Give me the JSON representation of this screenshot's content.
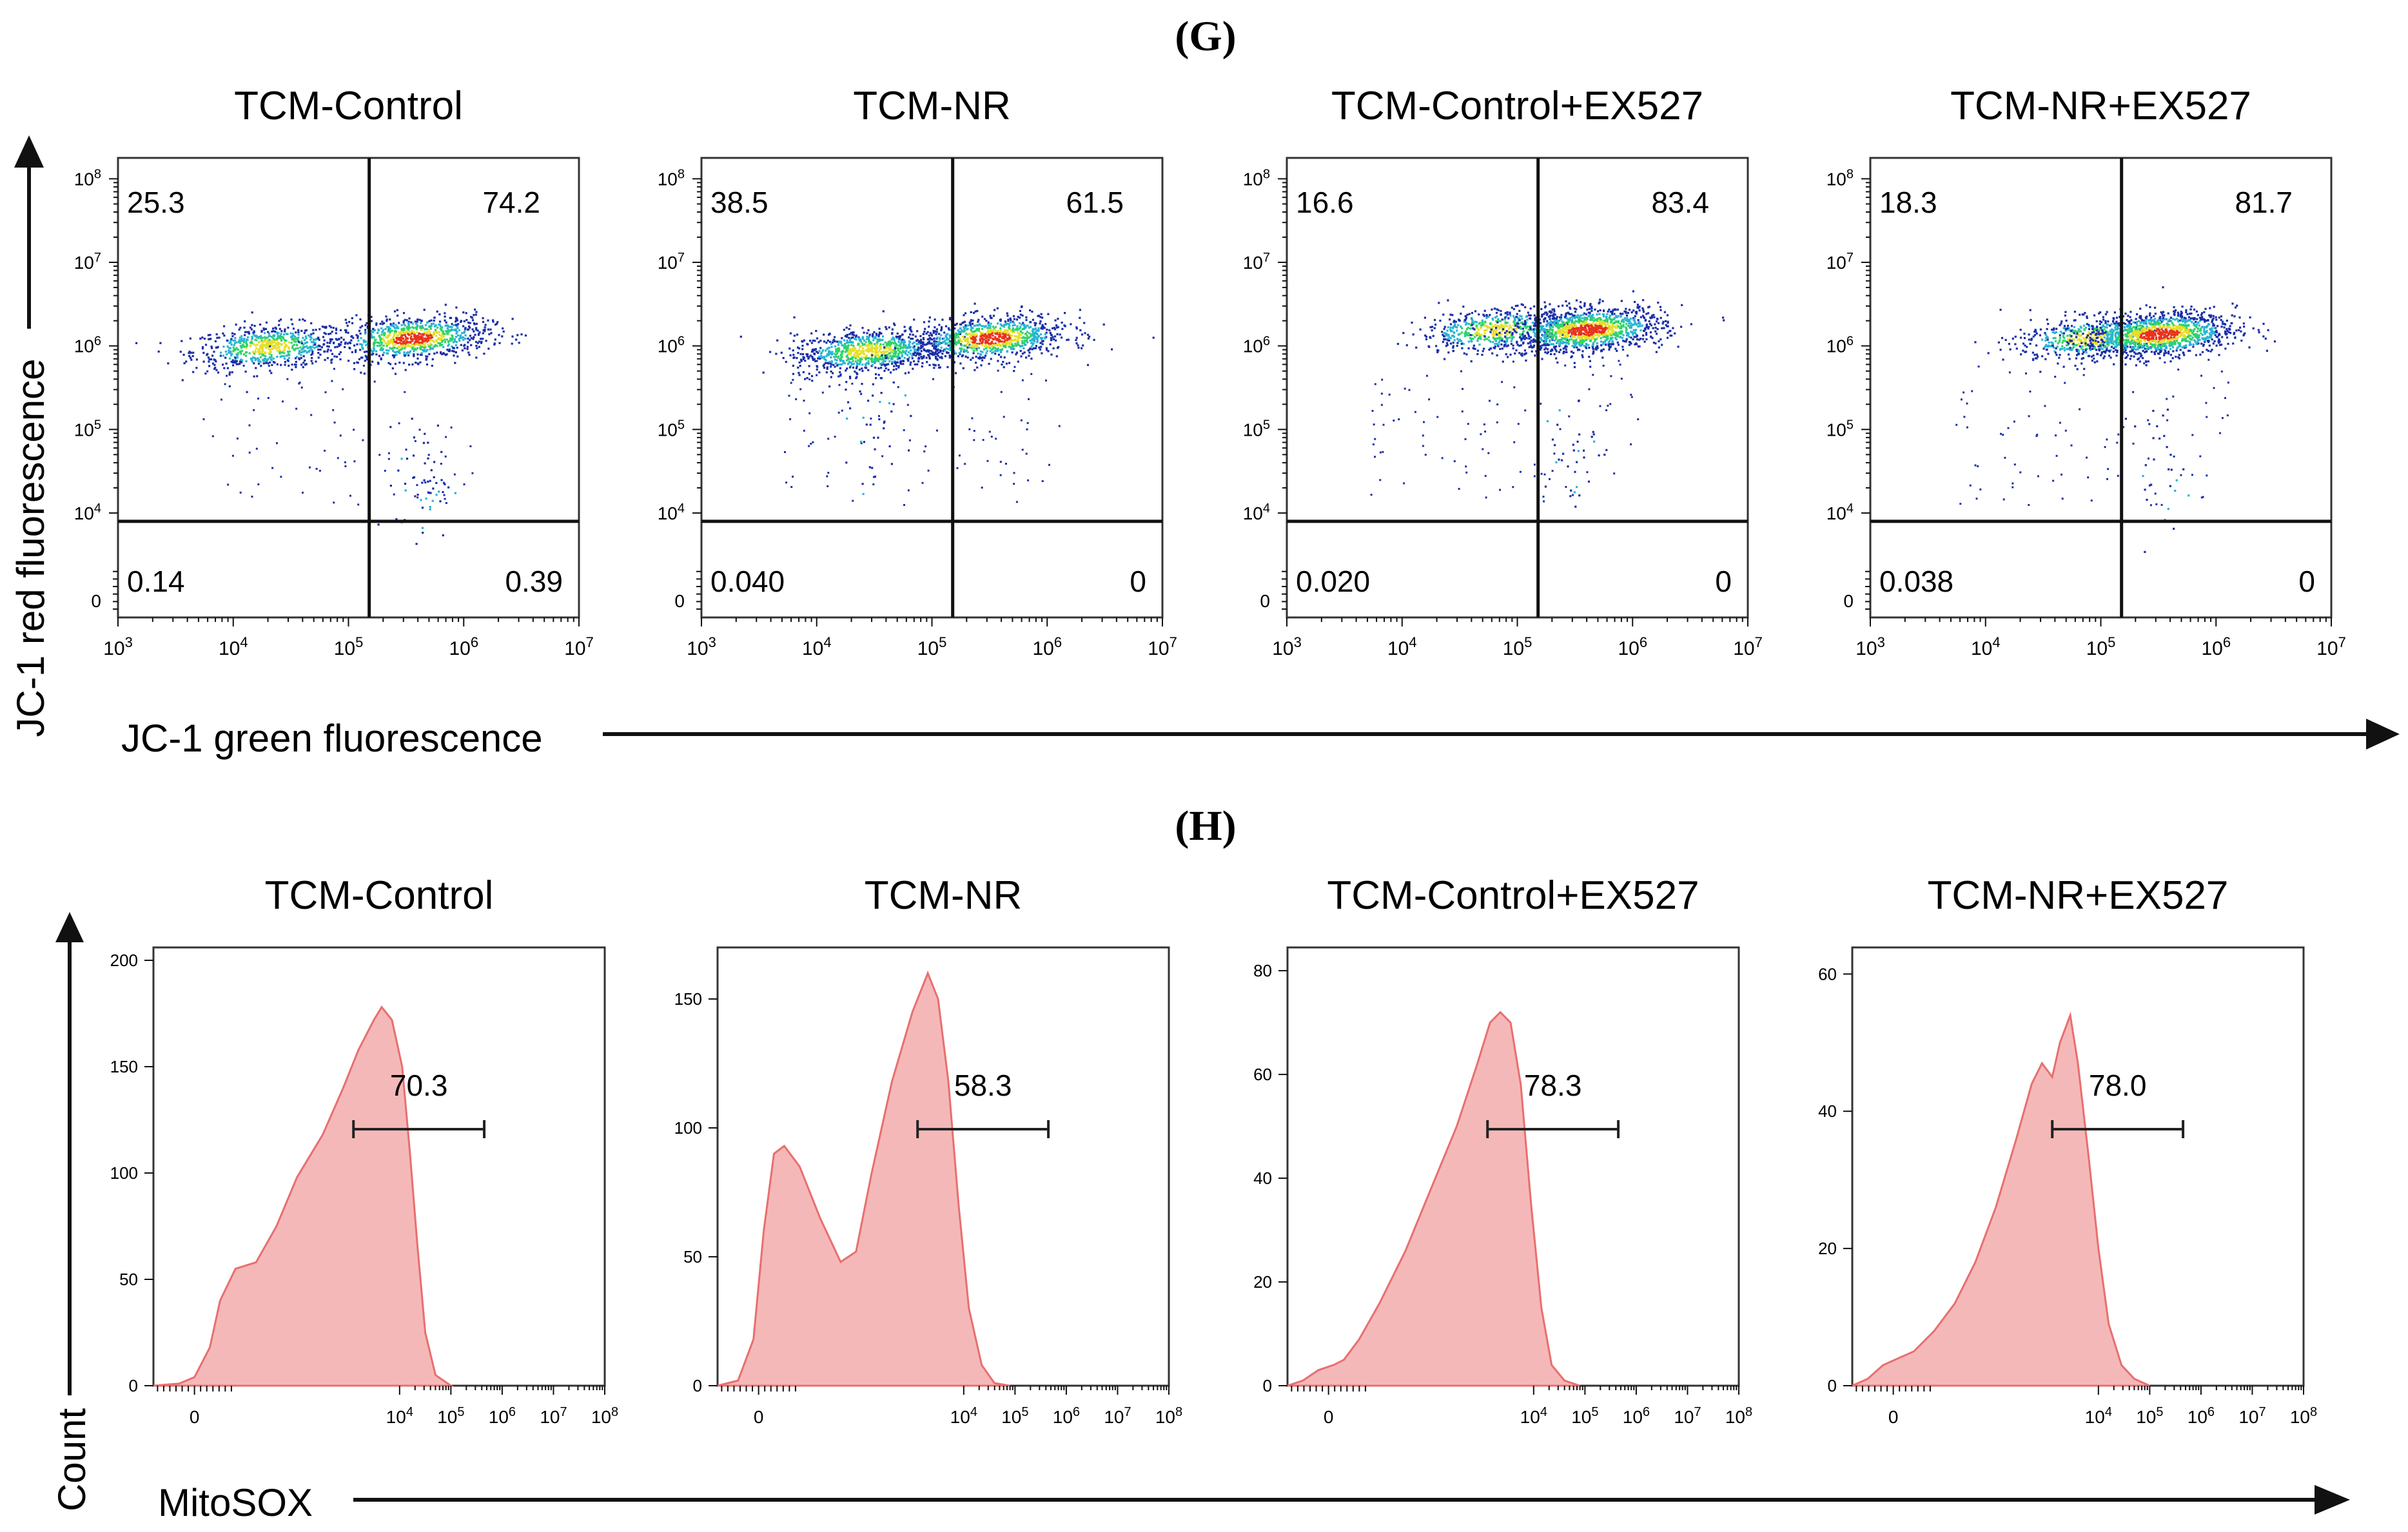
{
  "colors": {
    "axis": "#111111",
    "histogram_fill": "#f5b8b8",
    "histogram_stroke": "#e86f6f",
    "density_low": "#1a2ea8",
    "density_mid_low": "#29b4d4",
    "density_mid": "#2fd36a",
    "density_mid_high": "#e6df2a",
    "density_high": "#e8331c"
  },
  "chart_data": [
    {
      "panel": "G",
      "type": "scatter",
      "title": "(G)",
      "xlabel": "JC-1 green fluorescence",
      "ylabel": "JC-1 red fluorescence",
      "x_scale": "log",
      "y_scale": "log",
      "xlim": [
        1000,
        10000000
      ],
      "ylim": [
        0,
        100000000
      ],
      "x_ticks": [
        {
          "base": "10",
          "exp": "3",
          "log": 3
        },
        {
          "base": "10",
          "exp": "4",
          "log": 4
        },
        {
          "base": "10",
          "exp": "5",
          "log": 5
        },
        {
          "base": "10",
          "exp": "6",
          "log": 6
        },
        {
          "base": "10",
          "exp": "7",
          "log": 7
        }
      ],
      "y_ticks": [
        {
          "base": "0",
          "exp": "",
          "log": 2.95
        },
        {
          "base": "10",
          "exp": "4",
          "log": 4
        },
        {
          "base": "10",
          "exp": "5",
          "log": 5
        },
        {
          "base": "10",
          "exp": "6",
          "log": 6
        },
        {
          "base": "10",
          "exp": "7",
          "log": 7
        },
        {
          "base": "10",
          "exp": "8",
          "log": 8
        }
      ],
      "quadrant_gate": {
        "x_log": 5.18,
        "y_log": 3.9
      },
      "samples": [
        {
          "name": "TCM-Control",
          "quadrants": {
            "upper_left": "25.3",
            "upper_right": "74.2",
            "lower_left": "0.14",
            "lower_right": "0.39"
          },
          "clusters": [
            {
              "x": 4.3,
              "y": 6.0,
              "n": 650
            },
            {
              "x": 5.55,
              "y": 6.1,
              "n": 900
            }
          ],
          "tail": {
            "x": 5.65,
            "y": 4.4,
            "n": 55
          }
        },
        {
          "name": "TCM-NR",
          "quadrants": {
            "upper_left": "38.5",
            "upper_right": "61.5",
            "lower_left": "0.040",
            "lower_right": "0"
          },
          "clusters": [
            {
              "x": 4.45,
              "y": 5.95,
              "n": 900
            },
            {
              "x": 5.5,
              "y": 6.1,
              "n": 950
            }
          ],
          "tail": {
            "x": 4.5,
            "y": 5.0,
            "n": 40
          }
        },
        {
          "name": "TCM-Control+EX527",
          "quadrants": {
            "upper_left": "16.6",
            "upper_right": "83.4",
            "lower_left": "0.020",
            "lower_right": "0"
          },
          "clusters": [
            {
              "x": 4.8,
              "y": 6.2,
              "n": 550
            },
            {
              "x": 5.6,
              "y": 6.2,
              "n": 1250
            }
          ],
          "tail": {
            "x": 5.45,
            "y": 4.8,
            "n": 35
          }
        },
        {
          "name": "TCM-NR+EX527",
          "quadrants": {
            "upper_left": "18.3",
            "upper_right": "81.7",
            "lower_left": "0.038",
            "lower_right": "0"
          },
          "clusters": [
            {
              "x": 4.9,
              "y": 6.1,
              "n": 500
            },
            {
              "x": 5.5,
              "y": 6.15,
              "n": 1200
            }
          ],
          "tail": {
            "x": 5.5,
            "y": 4.6,
            "n": 30
          }
        }
      ]
    },
    {
      "panel": "H",
      "type": "area",
      "title": "(H)",
      "xlabel": "MitoSOX",
      "ylabel": "Count",
      "x_scale": "biexponential",
      "xlim": [
        -800,
        100000000
      ],
      "x_ticks": [
        {
          "base": "0",
          "exp": "",
          "v": 0
        },
        {
          "base": "10",
          "exp": "4",
          "v": 4
        },
        {
          "base": "10",
          "exp": "5",
          "v": 5
        },
        {
          "base": "10",
          "exp": "6",
          "v": 6
        },
        {
          "base": "10",
          "exp": "7",
          "v": 7
        },
        {
          "base": "10",
          "exp": "8",
          "v": 8
        }
      ],
      "samples": [
        {
          "name": "TCM-Control",
          "gate_label": "70.3",
          "gate": [
            3.1,
            5.65
          ],
          "ylim": [
            0,
            200
          ],
          "y_ticks": [
            0,
            50,
            100,
            150,
            200
          ],
          "curve": [
            [
              -0.8,
              0
            ],
            [
              -0.3,
              1
            ],
            [
              0,
              4
            ],
            [
              0.3,
              18
            ],
            [
              0.5,
              40
            ],
            [
              0.8,
              55
            ],
            [
              1.2,
              58
            ],
            [
              1.6,
              75
            ],
            [
              2.0,
              98
            ],
            [
              2.5,
              118
            ],
            [
              2.9,
              140
            ],
            [
              3.2,
              158
            ],
            [
              3.5,
              172
            ],
            [
              3.65,
              178
            ],
            [
              3.85,
              172
            ],
            [
              4.05,
              150
            ],
            [
              4.2,
              110
            ],
            [
              4.35,
              65
            ],
            [
              4.5,
              25
            ],
            [
              4.7,
              5
            ],
            [
              5.0,
              0
            ]
          ]
        },
        {
          "name": "TCM-NR",
          "gate_label": "58.3",
          "gate": [
            3.1,
            5.65
          ],
          "ylim": [
            0,
            165
          ],
          "y_ticks": [
            0,
            50,
            100,
            150
          ],
          "curve": [
            [
              -0.8,
              0
            ],
            [
              -0.4,
              2
            ],
            [
              -0.1,
              18
            ],
            [
              0.1,
              60
            ],
            [
              0.3,
              90
            ],
            [
              0.5,
              93
            ],
            [
              0.8,
              85
            ],
            [
              1.2,
              65
            ],
            [
              1.6,
              48
            ],
            [
              1.9,
              52
            ],
            [
              2.2,
              82
            ],
            [
              2.6,
              118
            ],
            [
              3.0,
              145
            ],
            [
              3.3,
              160
            ],
            [
              3.5,
              150
            ],
            [
              3.7,
              118
            ],
            [
              3.9,
              70
            ],
            [
              4.1,
              30
            ],
            [
              4.35,
              8
            ],
            [
              4.6,
              1
            ],
            [
              4.9,
              0
            ]
          ]
        },
        {
          "name": "TCM-Control+EX527",
          "gate_label": "78.3",
          "gate": [
            3.1,
            5.65
          ],
          "ylim": [
            0,
            82
          ],
          "y_ticks": [
            0,
            20,
            40,
            60,
            80
          ],
          "curve": [
            [
              -0.8,
              0
            ],
            [
              -0.5,
              1
            ],
            [
              -0.2,
              3
            ],
            [
              0.1,
              4
            ],
            [
              0.3,
              5
            ],
            [
              0.6,
              9
            ],
            [
              1.0,
              16
            ],
            [
              1.5,
              26
            ],
            [
              2.0,
              38
            ],
            [
              2.5,
              50
            ],
            [
              2.9,
              62
            ],
            [
              3.15,
              70
            ],
            [
              3.35,
              72
            ],
            [
              3.55,
              70
            ],
            [
              3.75,
              58
            ],
            [
              3.95,
              35
            ],
            [
              4.15,
              15
            ],
            [
              4.35,
              4
            ],
            [
              4.6,
              1
            ],
            [
              4.9,
              0
            ]
          ]
        },
        {
          "name": "TCM-NR+EX527",
          "gate_label": "78.0",
          "gate": [
            3.1,
            5.65
          ],
          "ylim": [
            0,
            62
          ],
          "y_ticks": [
            0,
            20,
            40,
            60
          ],
          "curve": [
            [
              -0.8,
              0
            ],
            [
              -0.5,
              1
            ],
            [
              -0.2,
              3
            ],
            [
              0.1,
              4
            ],
            [
              0.4,
              5
            ],
            [
              0.8,
              8
            ],
            [
              1.2,
              12
            ],
            [
              1.6,
              18
            ],
            [
              2.0,
              26
            ],
            [
              2.4,
              36
            ],
            [
              2.7,
              44
            ],
            [
              2.9,
              47
            ],
            [
              3.1,
              45
            ],
            [
              3.25,
              50
            ],
            [
              3.45,
              54
            ],
            [
              3.6,
              47
            ],
            [
              3.8,
              34
            ],
            [
              4.0,
              20
            ],
            [
              4.2,
              9
            ],
            [
              4.45,
              3
            ],
            [
              4.7,
              1
            ],
            [
              5.0,
              0
            ]
          ]
        }
      ]
    }
  ]
}
